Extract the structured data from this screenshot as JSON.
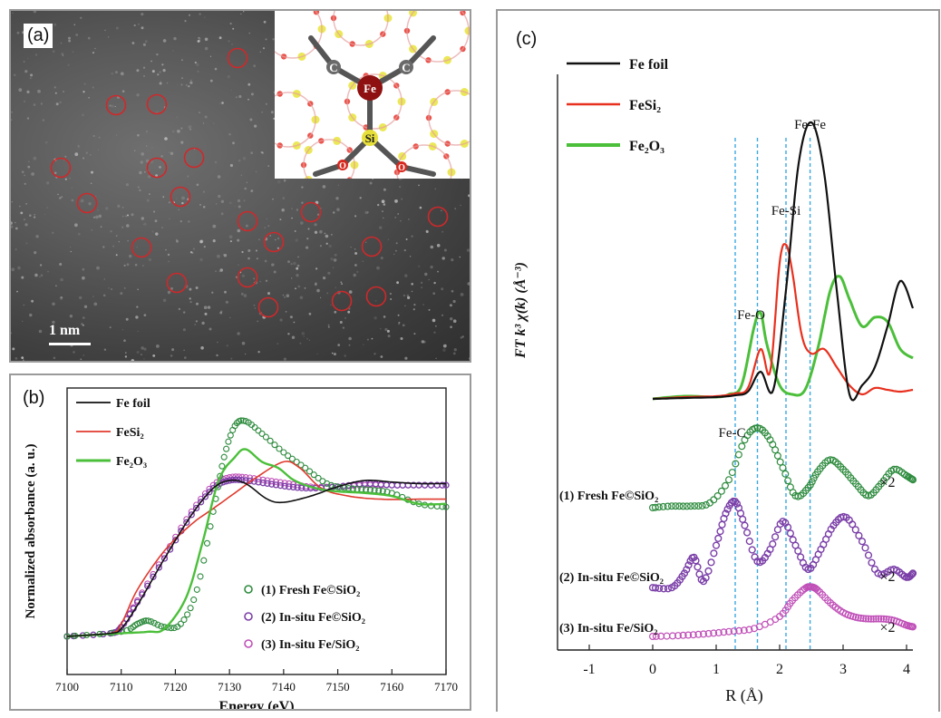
{
  "panel_a": {
    "letter": "(a)",
    "scale_label": "1 nm",
    "inset_atoms": {
      "fe": "Fe",
      "si": "Si",
      "c1": "C",
      "c2": "C",
      "o1": "O",
      "o2": "O"
    },
    "circle_count_note": ""
  },
  "panel_b": {
    "letter": "(b)",
    "legend_top": [
      "Fe foil",
      "FeSi₂",
      "Fe₂O₃"
    ],
    "legend_bottom": [
      "(1) Fresh Fe©SiO₂",
      "(2) In-situ Fe©SiO₂",
      "(3) In-situ  Fe/SiO₂"
    ],
    "colors": {
      "fe_foil": "#111111",
      "fesi2": "#e03a2e",
      "fe2o3": "#4bbf3a",
      "fresh": "#2e8b3e",
      "insitu_fe_sio2": "#7b3fa8",
      "insitu_fe_sio2_3": "#c050b8"
    }
  },
  "panel_c": {
    "letter": "(c)",
    "legend": [
      "Fe foil",
      "FeSi₂",
      "Fe₂O₃"
    ],
    "peak_labels": [
      "Fe-Fe",
      "Fe-Si",
      "Fe-O",
      "Fe-C"
    ],
    "curve_labels": [
      "(1) Fresh Fe©SiO₂",
      "(2) In-situ Fe©SiO₂",
      "(3) In-situ Fe/SiO₂"
    ],
    "multipliers": [
      "×2",
      "×2",
      "×2"
    ]
  },
  "chart_data": [
    {
      "type": "line",
      "xlabel": "Energy (eV)",
      "ylabel": "Normalized absorbance (a. u.)",
      "xlim": [
        7100,
        7170
      ],
      "xticks": [
        7100,
        7110,
        7120,
        7130,
        7140,
        7150,
        7160,
        7170
      ],
      "series": [
        {
          "name": "Fe foil",
          "x": [
            7100,
            7108,
            7110,
            7113,
            7118,
            7123,
            7127,
            7130,
            7133,
            7137,
            7140,
            7145,
            7150,
            7155,
            7160,
            7165,
            7170
          ],
          "y": [
            0.0,
            0.02,
            0.05,
            0.2,
            0.5,
            0.78,
            0.95,
            1.0,
            0.98,
            0.88,
            0.86,
            0.9,
            0.96,
            1.0,
            0.99,
            0.98,
            0.98
          ]
        },
        {
          "name": "FeSi₂",
          "x": [
            7100,
            7108,
            7110,
            7113,
            7118,
            7123,
            7127,
            7131,
            7135,
            7140,
            7143,
            7147,
            7152,
            7158,
            7165,
            7170
          ],
          "y": [
            0.0,
            0.02,
            0.08,
            0.3,
            0.55,
            0.72,
            0.82,
            0.92,
            1.02,
            1.12,
            1.08,
            0.95,
            0.9,
            0.88,
            0.88,
            0.88
          ]
        },
        {
          "name": "Fe₂O₃",
          "x": [
            7100,
            7110,
            7115,
            7118,
            7122,
            7125,
            7128,
            7131,
            7133,
            7136,
            7139,
            7142,
            7146,
            7150,
            7155,
            7160,
            7165,
            7170
          ],
          "y": [
            0.0,
            0.02,
            0.03,
            0.05,
            0.25,
            0.6,
            1.0,
            1.15,
            1.2,
            1.12,
            1.08,
            1.0,
            0.95,
            0.93,
            0.92,
            0.9,
            0.85,
            0.85
          ]
        },
        {
          "name": "(1) Fresh Fe©SiO₂",
          "x": [
            7100,
            7110,
            7113,
            7115,
            7118,
            7121,
            7124,
            7127,
            7129,
            7131,
            7133,
            7136,
            7140,
            7144,
            7148,
            7152,
            7156,
            7160,
            7165,
            7170
          ],
          "y": [
            0.0,
            0.03,
            0.08,
            0.1,
            0.06,
            0.08,
            0.3,
            0.8,
            1.15,
            1.35,
            1.38,
            1.3,
            1.18,
            1.08,
            0.98,
            0.95,
            0.94,
            0.92,
            0.85,
            0.83
          ]
        },
        {
          "name": "(2) In-situ Fe©SiO₂",
          "x": [
            7100,
            7108,
            7110,
            7113,
            7118,
            7123,
            7127,
            7130,
            7133,
            7137,
            7141,
            7145,
            7150,
            7155,
            7160,
            7165,
            7170
          ],
          "y": [
            0.0,
            0.02,
            0.06,
            0.22,
            0.5,
            0.78,
            0.95,
            1.0,
            1.0,
            0.98,
            0.96,
            0.95,
            0.96,
            0.98,
            0.97,
            0.97,
            0.97
          ]
        },
        {
          "name": "(3) In-situ  Fe/SiO₂",
          "x": [
            7100,
            7108,
            7110,
            7113,
            7118,
            7123,
            7127,
            7130,
            7133,
            7137,
            7141,
            7145,
            7150,
            7155,
            7160,
            7165,
            7170
          ],
          "y": [
            0.0,
            0.02,
            0.06,
            0.23,
            0.52,
            0.8,
            0.97,
            1.02,
            1.02,
            1.0,
            0.98,
            0.96,
            0.96,
            0.97,
            0.97,
            0.97,
            0.97
          ]
        }
      ]
    },
    {
      "type": "line",
      "xlabel": "R (Å)",
      "ylabel": "FT k³ χ(k) (Å⁻³)",
      "xlim": [
        -1.5,
        4.1
      ],
      "xticks": [
        -1,
        0,
        1,
        2,
        3,
        4
      ],
      "reference_lines_x": [
        1.3,
        1.65,
        2.1,
        2.48
      ],
      "series": [
        {
          "name": "Fe foil",
          "x": [
            0.0,
            0.5,
            1.0,
            1.3,
            1.5,
            1.7,
            1.9,
            2.1,
            2.3,
            2.5,
            2.7,
            2.9,
            3.1,
            3.3,
            3.5,
            3.7,
            3.9,
            4.1
          ],
          "y": [
            0.0,
            0.01,
            0.02,
            0.04,
            0.08,
            0.3,
            0.1,
            1.2,
            2.6,
            3.05,
            2.5,
            1.2,
            0.05,
            0.15,
            0.35,
            0.8,
            1.3,
            1.0
          ]
        },
        {
          "name": "FeSi₂",
          "x": [
            0.0,
            0.5,
            1.0,
            1.3,
            1.5,
            1.7,
            1.85,
            2.0,
            2.1,
            2.2,
            2.35,
            2.5,
            2.7,
            2.9,
            3.1,
            3.3,
            3.5,
            3.7,
            3.9,
            4.1
          ],
          "y": [
            0.0,
            0.02,
            0.03,
            0.06,
            0.12,
            0.55,
            0.3,
            1.5,
            1.7,
            1.4,
            0.7,
            0.5,
            0.55,
            0.35,
            0.15,
            0.05,
            0.12,
            0.1,
            0.08,
            0.1
          ]
        },
        {
          "name": "Fe₂O₃",
          "x": [
            0.0,
            0.5,
            1.0,
            1.2,
            1.4,
            1.6,
            1.7,
            1.8,
            2.0,
            2.2,
            2.4,
            2.6,
            2.8,
            2.95,
            3.1,
            3.3,
            3.5,
            3.7,
            3.9,
            4.1
          ],
          "y": [
            0.0,
            0.03,
            0.02,
            0.05,
            0.15,
            0.8,
            0.95,
            0.6,
            0.15,
            0.05,
            0.1,
            0.55,
            1.2,
            1.35,
            1.1,
            0.8,
            0.9,
            0.85,
            0.55,
            0.45
          ]
        },
        {
          "name": "(1) Fresh Fe©SiO₂",
          "x": [
            0.0,
            0.3,
            0.6,
            0.9,
            1.2,
            1.45,
            1.65,
            1.85,
            2.05,
            2.25,
            2.45,
            2.6,
            2.8,
            3.0,
            3.2,
            3.4,
            3.6,
            3.8,
            4.0,
            4.1
          ],
          "y": [
            0.0,
            0.02,
            0.02,
            0.06,
            0.35,
            0.85,
            1.0,
            0.85,
            0.5,
            0.15,
            0.25,
            0.45,
            0.6,
            0.48,
            0.3,
            0.15,
            0.3,
            0.48,
            0.4,
            0.35
          ]
        },
        {
          "name": "(2) In-situ Fe©SiO₂",
          "x": [
            0.0,
            0.3,
            0.5,
            0.65,
            0.8,
            1.0,
            1.15,
            1.3,
            1.45,
            1.65,
            1.85,
            2.05,
            2.25,
            2.45,
            2.65,
            2.85,
            3.05,
            3.3,
            3.55,
            3.8,
            4.0,
            4.1
          ],
          "y": [
            0.02,
            0.02,
            0.2,
            0.4,
            0.1,
            0.55,
            0.95,
            1.1,
            0.8,
            0.35,
            0.5,
            0.85,
            0.55,
            0.25,
            0.5,
            0.8,
            0.9,
            0.6,
            0.2,
            0.25,
            0.15,
            0.2
          ]
        },
        {
          "name": "(3) In-situ Fe/SiO₂",
          "x": [
            0.0,
            0.4,
            0.8,
            1.2,
            1.6,
            2.0,
            2.2,
            2.4,
            2.5,
            2.6,
            2.8,
            3.0,
            3.2,
            3.4,
            3.6,
            3.8,
            4.0,
            4.1
          ],
          "y": [
            0.0,
            0.01,
            0.03,
            0.06,
            0.1,
            0.25,
            0.45,
            0.6,
            0.62,
            0.58,
            0.42,
            0.3,
            0.24,
            0.22,
            0.22,
            0.2,
            0.14,
            0.12
          ]
        }
      ]
    }
  ]
}
